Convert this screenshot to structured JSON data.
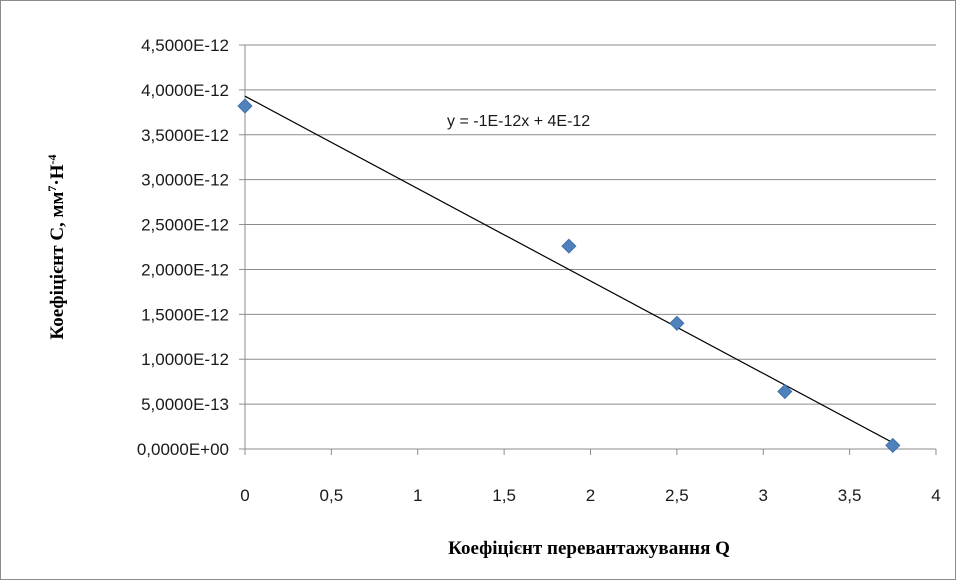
{
  "chart_data": {
    "type": "scatter",
    "xlabel": "Коефіцієнт перевантажування Q",
    "ylabel_main": "Коефіцієнт  С, мм",
    "ylabel_sup1": "7",
    "ylabel_mid": "·Н",
    "ylabel_sup2": "-4",
    "xlim": [
      0,
      4
    ],
    "ylim": [
      0,
      4.5e-12
    ],
    "x_ticks": [
      0,
      0.5,
      1,
      1.5,
      2,
      2.5,
      3,
      3.5,
      4
    ],
    "x_tick_labels": [
      "0",
      "0,5",
      "1",
      "1,5",
      "2",
      "2,5",
      "3",
      "3,5",
      "4"
    ],
    "y_ticks": [
      0,
      5e-13,
      1e-12,
      1.5e-12,
      2e-12,
      2.5e-12,
      3e-12,
      3.5e-12,
      4e-12,
      4.5e-12
    ],
    "y_tick_labels": [
      "0,0000E+00",
      "5,0000E-13",
      "1,0000E-12",
      "1,5000E-12",
      "2,0000E-12",
      "2,5000E-12",
      "3,0000E-12",
      "3,5000E-12",
      "4,0000E-12",
      "4,5000E-12"
    ],
    "grid": "horizontal",
    "series": [
      {
        "x": [
          0,
          1.875,
          2.5,
          3.125,
          3.75
        ],
        "y": [
          3.82e-12,
          2.26e-12,
          1.4e-12,
          6.4e-13,
          4e-14
        ],
        "marker": "diamond",
        "color": "#4f81bd"
      }
    ],
    "trendline": {
      "equation": "y = -1E-12x + 4E-12",
      "x": [
        0,
        3.75
      ],
      "y": [
        3.93e-12,
        7e-14
      ],
      "color": "#000000"
    }
  }
}
